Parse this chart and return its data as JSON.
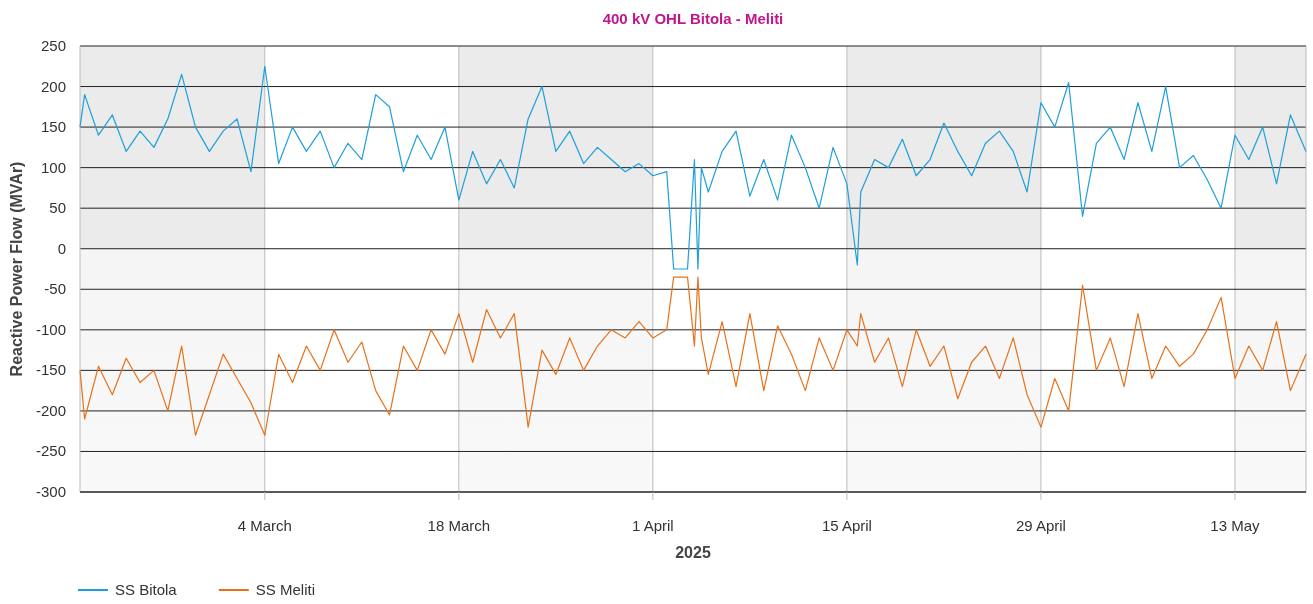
{
  "chart_data": {
    "type": "line",
    "title": "400 kV OHL Bitola - Meliti",
    "xlabel": "2025",
    "ylabel": "Reactive Power Flow (MVAr)",
    "x": [
      "2025-02-18T16:00",
      "2025-02-19",
      "2025-02-20",
      "2025-02-21",
      "2025-02-22",
      "2025-02-23",
      "2025-02-24",
      "2025-02-25",
      "2025-02-26",
      "2025-02-27",
      "2025-02-28",
      "2025-03-01",
      "2025-03-02",
      "2025-03-03",
      "2025-03-04",
      "2025-03-05",
      "2025-03-06",
      "2025-03-07",
      "2025-03-08",
      "2025-03-09",
      "2025-03-10",
      "2025-03-11",
      "2025-03-12",
      "2025-03-13",
      "2025-03-14",
      "2025-03-15",
      "2025-03-16",
      "2025-03-17",
      "2025-03-18",
      "2025-03-19",
      "2025-03-20",
      "2025-03-21",
      "2025-03-22",
      "2025-03-23",
      "2025-03-24",
      "2025-03-25",
      "2025-03-26",
      "2025-03-27",
      "2025-03-28",
      "2025-03-29",
      "2025-03-30",
      "2025-03-31",
      "2025-04-01",
      "2025-04-02",
      "2025-04-02T12:00",
      "2025-04-03",
      "2025-04-03T12:00",
      "2025-04-04",
      "2025-04-04T06:00",
      "2025-04-04T12:00",
      "2025-04-05",
      "2025-04-06",
      "2025-04-07",
      "2025-04-08",
      "2025-04-09",
      "2025-04-10",
      "2025-04-11",
      "2025-04-12",
      "2025-04-13",
      "2025-04-14",
      "2025-04-15",
      "2025-04-15T18:00",
      "2025-04-16",
      "2025-04-17",
      "2025-04-18",
      "2025-04-19",
      "2025-04-20",
      "2025-04-21",
      "2025-04-22",
      "2025-04-23",
      "2025-04-24",
      "2025-04-25",
      "2025-04-26",
      "2025-04-27",
      "2025-04-28",
      "2025-04-29",
      "2025-04-30",
      "2025-05-01",
      "2025-05-02",
      "2025-05-03",
      "2025-05-04",
      "2025-05-05",
      "2025-05-06",
      "2025-05-07",
      "2025-05-08",
      "2025-05-09",
      "2025-05-10",
      "2025-05-11",
      "2025-05-12",
      "2025-05-13",
      "2025-05-14",
      "2025-05-15",
      "2025-05-16",
      "2025-05-17",
      "2025-05-18T03:00"
    ],
    "series": [
      {
        "name": "SS Bitola",
        "color": "#1e9fdc",
        "values": [
          150,
          190,
          140,
          165,
          120,
          145,
          125,
          160,
          215,
          150,
          120,
          145,
          160,
          95,
          225,
          105,
          150,
          120,
          145,
          100,
          130,
          110,
          190,
          175,
          95,
          140,
          110,
          150,
          60,
          120,
          80,
          110,
          75,
          160,
          200,
          120,
          145,
          105,
          125,
          110,
          95,
          105,
          90,
          95,
          -25,
          -25,
          -25,
          110,
          -25,
          100,
          70,
          120,
          145,
          65,
          110,
          60,
          140,
          100,
          50,
          125,
          80,
          -20,
          70,
          110,
          100,
          135,
          90,
          110,
          155,
          120,
          90,
          130,
          145,
          120,
          70,
          180,
          150,
          205,
          40,
          130,
          150,
          110,
          180,
          120,
          200,
          100,
          115,
          85,
          50,
          140,
          110,
          150,
          80,
          165,
          120
        ]
      },
      {
        "name": "SS Meliti",
        "color": "#e8711a",
        "values": [
          -150,
          -210,
          -145,
          -180,
          -135,
          -165,
          -150,
          -200,
          -120,
          -230,
          -180,
          -130,
          -160,
          -190,
          -230,
          -130,
          -165,
          -120,
          -150,
          -100,
          -140,
          -115,
          -175,
          -205,
          -120,
          -150,
          -100,
          -130,
          -80,
          -140,
          -75,
          -110,
          -80,
          -220,
          -125,
          -155,
          -110,
          -150,
          -120,
          -100,
          -110,
          -90,
          -110,
          -100,
          -35,
          -35,
          -35,
          -120,
          -35,
          -110,
          -155,
          -90,
          -170,
          -80,
          -175,
          -95,
          -130,
          -175,
          -110,
          -150,
          -100,
          -120,
          -80,
          -140,
          -110,
          -170,
          -100,
          -145,
          -120,
          -185,
          -140,
          -120,
          -160,
          -110,
          -180,
          -220,
          -160,
          -200,
          -45,
          -150,
          -110,
          -170,
          -80,
          -160,
          -120,
          -145,
          -130,
          -100,
          -60,
          -160,
          -120,
          -150,
          -90,
          -175,
          -130
        ]
      }
    ],
    "xlim": [
      "2025-02-18T16:00",
      "2025-05-18T03:00"
    ],
    "xticks": [
      {
        "value": "2025-03-04",
        "label": "4 March"
      },
      {
        "value": "2025-03-18",
        "label": "18 March"
      },
      {
        "value": "2025-04-01",
        "label": "1 April"
      },
      {
        "value": "2025-04-15",
        "label": "15 April"
      },
      {
        "value": "2025-04-29",
        "label": "29 April"
      },
      {
        "value": "2025-05-13",
        "label": "13 May"
      }
    ],
    "ylim": [
      -300,
      250
    ],
    "yticks": [
      -300,
      -250,
      -200,
      -150,
      -100,
      -50,
      0,
      50,
      100,
      150,
      200,
      250
    ],
    "bands": [
      {
        "axis": "x",
        "from": "2025-02-18T16:00",
        "to": "2025-03-04",
        "color": "#ebebeb"
      },
      {
        "axis": "x",
        "from": "2025-03-18",
        "to": "2025-04-01",
        "color": "#ebebeb"
      },
      {
        "axis": "x",
        "from": "2025-04-15",
        "to": "2025-04-29",
        "color": "#ebebeb"
      },
      {
        "axis": "x",
        "from": "2025-05-13",
        "to": "2025-05-18T03:00",
        "color": "#ebebeb"
      }
    ],
    "grid": true,
    "legend": "bottom left",
    "line_style": "solid",
    "marker": "none"
  }
}
